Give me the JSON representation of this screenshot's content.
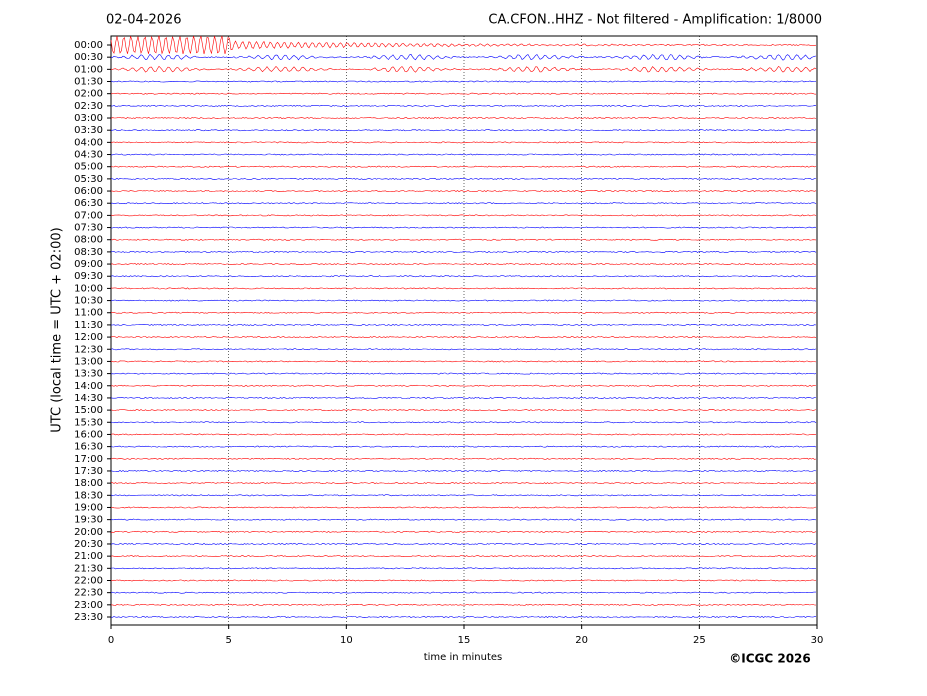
{
  "chart_data": {
    "type": "helicorder",
    "date": "02-04-2026",
    "title": "CA.CFON..HHZ - Not filtered - Amplification: 1/8000",
    "ylabel": "UTC (local time = UTC + 02:00)",
    "xlabel": "time in minutes",
    "copyright": "©ICGC 2026",
    "categories": [
      "00:00",
      "00:30",
      "01:00",
      "01:30",
      "02:00",
      "02:30",
      "03:00",
      "03:30",
      "04:00",
      "04:30",
      "05:00",
      "05:30",
      "06:00",
      "06:30",
      "07:00",
      "07:30",
      "08:00",
      "08:30",
      "09:00",
      "09:30",
      "10:00",
      "10:30",
      "11:00",
      "11:30",
      "12:00",
      "12:30",
      "13:00",
      "13:30",
      "14:00",
      "14:30",
      "15:00",
      "15:30",
      "16:00",
      "16:30",
      "17:00",
      "17:30",
      "18:00",
      "18:30",
      "19:00",
      "19:30",
      "20:00",
      "20:30",
      "21:00",
      "21:30",
      "22:00",
      "22:30",
      "23:00",
      "23:30"
    ],
    "colors": [
      "#ff0000",
      "#0000ff"
    ],
    "xlim": [
      0,
      30
    ],
    "xticks": [
      0,
      5,
      10,
      15,
      20,
      25,
      30
    ],
    "grid": true
  }
}
